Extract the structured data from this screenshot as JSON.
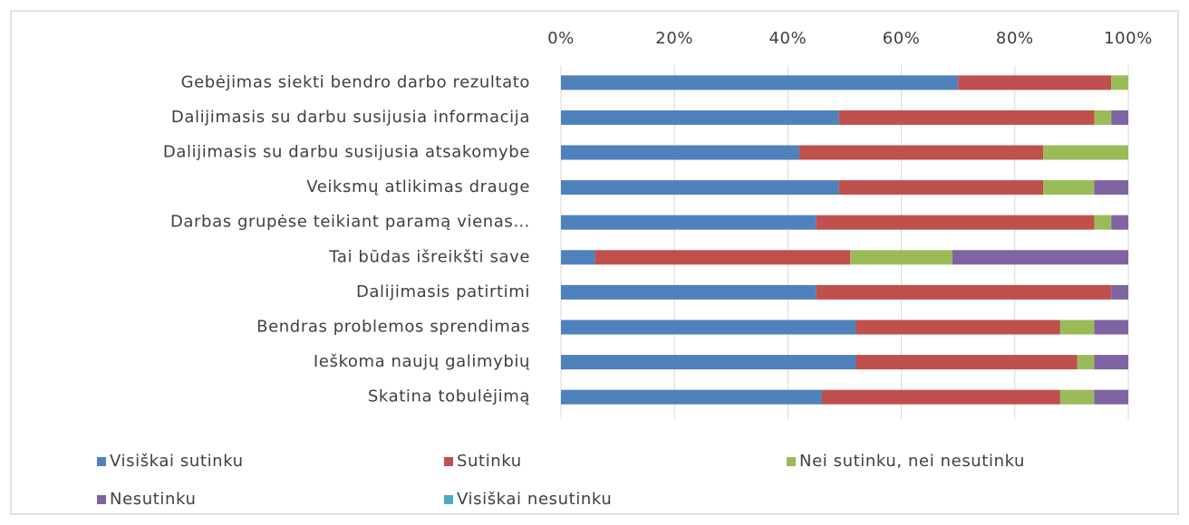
{
  "chart_data": {
    "type": "stacked-bar-horizontal",
    "categories": [
      "Gebėjimas siekti bendro darbo rezultato",
      "Dalijimasis su darbu susijusia informacija",
      "Dalijimasis su darbu susijusia atsakomybe",
      "Veiksmų atlikimas drauge",
      "Darbas grupėse teikiant paramą vienas…",
      "Tai būdas išreikšti save",
      "Dalijimasis patirtimi",
      "Bendras problemos sprendimas",
      "Ieškoma naujų galimybių",
      "Skatina tobulėjimą"
    ],
    "series": [
      {
        "name": "Visiškai sutinku",
        "color": "#4f81bd",
        "values": [
          70,
          49,
          42,
          49,
          45,
          6,
          45,
          52,
          52,
          46
        ]
      },
      {
        "name": "Sutinku",
        "color": "#c0504d",
        "values": [
          27,
          45,
          43,
          36,
          49,
          45,
          52,
          36,
          39,
          42
        ]
      },
      {
        "name": "Nei sutinku, nei nesutinku",
        "color": "#9bbb59",
        "values": [
          3,
          3,
          15,
          9,
          3,
          18,
          0,
          6,
          3,
          6
        ]
      },
      {
        "name": "Nesutinku",
        "color": "#8064a2",
        "values": [
          0,
          3,
          0,
          6,
          3,
          31,
          3,
          6,
          6,
          6
        ]
      },
      {
        "name": "Visiškai nesutinku",
        "color": "#4bacc6",
        "values": [
          0,
          0,
          0,
          0,
          0,
          0,
          0,
          0,
          0,
          0
        ]
      }
    ],
    "xlim": [
      0,
      100
    ],
    "xticks": [
      {
        "value": 0,
        "label": "0%"
      },
      {
        "value": 20,
        "label": "20%"
      },
      {
        "value": 40,
        "label": "40%"
      },
      {
        "value": 60,
        "label": "60%"
      },
      {
        "value": 80,
        "label": "80%"
      },
      {
        "value": 100,
        "label": "100%"
      }
    ],
    "grid": true,
    "legend": "bottom"
  }
}
